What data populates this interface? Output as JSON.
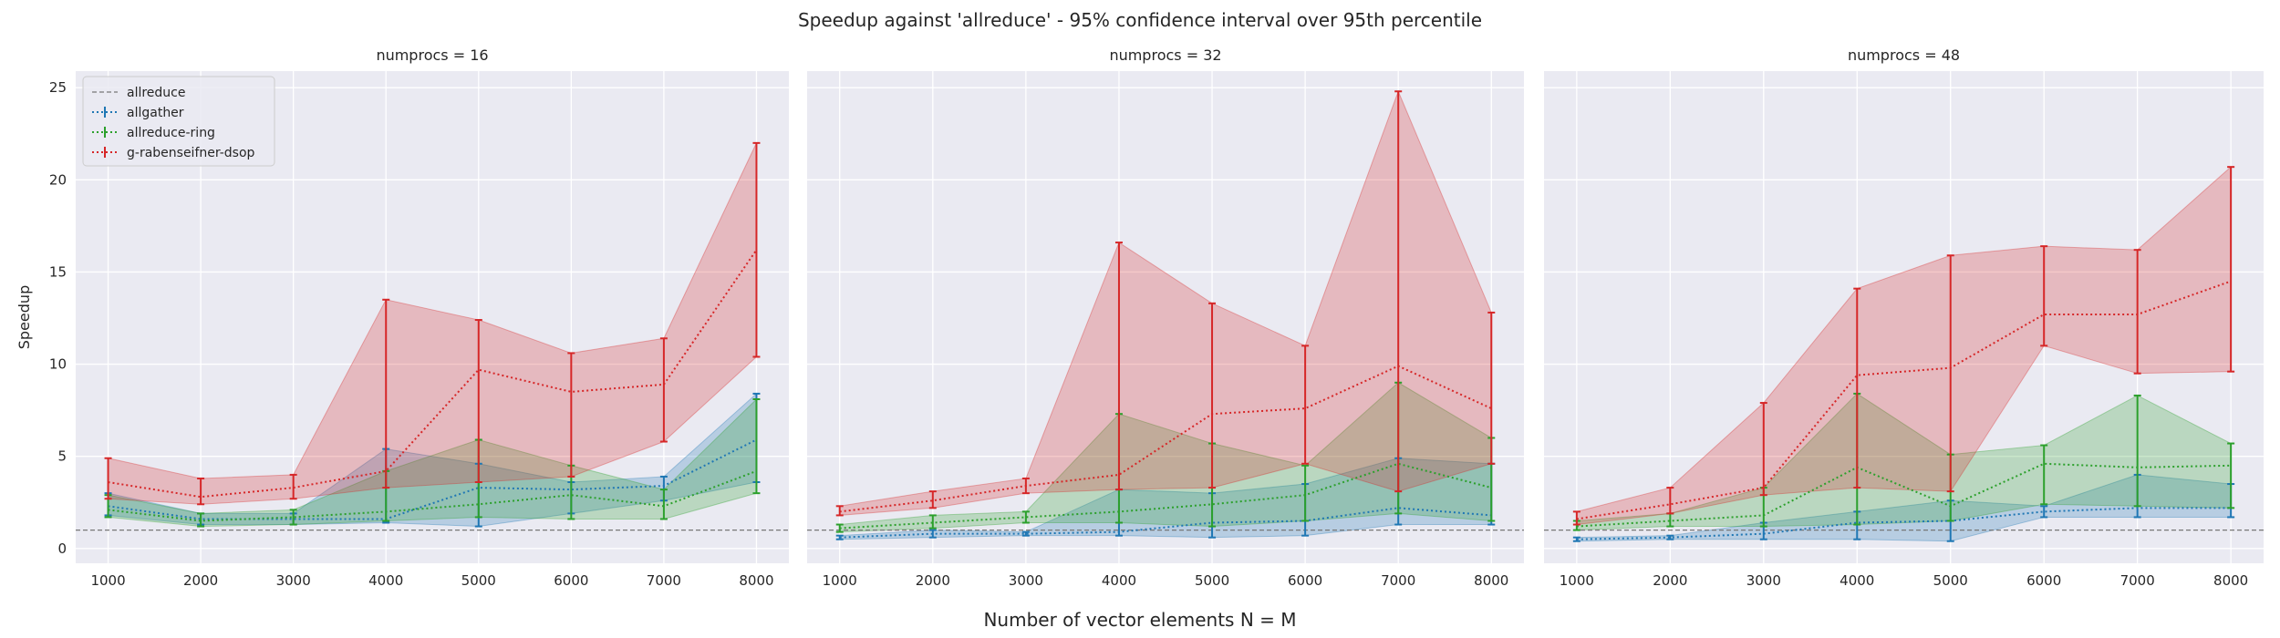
{
  "suptitle": "Speedup against 'allreduce' - 95% confidence interval over 95th percentile",
  "xlabel": "Number of vector elements N = M",
  "chart_data": [
    {
      "type": "line",
      "title": "numprocs = 16",
      "ylabel": "Speedup",
      "xlabel": "",
      "x": [
        1000,
        2000,
        3000,
        4000,
        5000,
        6000,
        7000,
        8000
      ],
      "xlim": [
        650,
        8350
      ],
      "ylim": [
        -0.8,
        25.9
      ],
      "yticks": [
        0,
        5,
        10,
        15,
        20,
        25
      ],
      "grid": true,
      "legend": "top-left",
      "baseline": {
        "name": "allreduce",
        "value": 1,
        "color": "#777777"
      },
      "series": [
        {
          "name": "allgather",
          "color": "#1f77b4",
          "values": [
            2.3,
            1.6,
            1.6,
            1.6,
            3.3,
            3.2,
            3.4,
            5.9
          ],
          "lower": [
            1.8,
            1.3,
            1.3,
            1.4,
            1.2,
            1.9,
            2.6,
            3.6
          ],
          "upper": [
            3.0,
            1.9,
            1.9,
            5.4,
            4.6,
            3.6,
            3.9,
            8.4
          ]
        },
        {
          "name": "allreduce-ring",
          "color": "#2ca02c",
          "values": [
            2.1,
            1.5,
            1.7,
            2.0,
            2.4,
            2.9,
            2.3,
            4.2
          ],
          "lower": [
            1.7,
            1.2,
            1.3,
            1.5,
            1.7,
            1.6,
            1.6,
            3.0
          ],
          "upper": [
            2.9,
            1.9,
            2.1,
            4.2,
            5.9,
            4.5,
            3.2,
            8.1
          ]
        },
        {
          "name": "g-rabenseifner-dsop",
          "color": "#d62728",
          "values": [
            3.6,
            2.8,
            3.3,
            4.2,
            9.7,
            8.5,
            8.9,
            16.2
          ],
          "lower": [
            2.7,
            2.4,
            2.7,
            3.3,
            3.6,
            3.9,
            5.8,
            10.4
          ],
          "upper": [
            4.9,
            3.8,
            4.0,
            13.5,
            12.4,
            10.6,
            11.4,
            22.0
          ]
        }
      ]
    },
    {
      "type": "line",
      "title": "numprocs = 32",
      "x": [
        1000,
        2000,
        3000,
        4000,
        5000,
        6000,
        7000,
        8000
      ],
      "xlim": [
        650,
        8350
      ],
      "ylim": [
        -0.8,
        25.9
      ],
      "grid": true,
      "baseline": {
        "name": "allreduce",
        "value": 1,
        "color": "#777777"
      },
      "series": [
        {
          "name": "allgather",
          "color": "#1f77b4",
          "values": [
            0.6,
            0.8,
            0.8,
            0.9,
            1.4,
            1.5,
            2.2,
            1.8
          ],
          "lower": [
            0.5,
            0.6,
            0.7,
            0.7,
            0.6,
            0.7,
            1.3,
            1.3
          ],
          "upper": [
            0.7,
            1.0,
            0.9,
            3.2,
            3.0,
            3.5,
            4.9,
            4.6
          ]
        },
        {
          "name": "allreduce-ring",
          "color": "#2ca02c",
          "values": [
            1.1,
            1.4,
            1.7,
            2.0,
            2.4,
            2.9,
            4.6,
            3.3
          ],
          "lower": [
            0.9,
            1.1,
            1.4,
            1.4,
            1.2,
            1.5,
            1.9,
            1.5
          ],
          "upper": [
            1.3,
            1.8,
            2.0,
            7.3,
            5.7,
            4.5,
            9.0,
            6.0
          ]
        },
        {
          "name": "g-rabenseifner-dsop",
          "color": "#d62728",
          "values": [
            2.0,
            2.6,
            3.4,
            4.0,
            7.3,
            7.6,
            9.9,
            7.6
          ],
          "lower": [
            1.8,
            2.2,
            3.0,
            3.2,
            3.3,
            4.6,
            3.1,
            4.6
          ],
          "upper": [
            2.3,
            3.1,
            3.8,
            16.6,
            13.3,
            11.0,
            24.8,
            12.8
          ]
        }
      ]
    },
    {
      "type": "line",
      "title": "numprocs = 48",
      "x": [
        1000,
        2000,
        3000,
        4000,
        5000,
        6000,
        7000,
        8000
      ],
      "xlim": [
        650,
        8350
      ],
      "ylim": [
        -0.8,
        25.9
      ],
      "grid": true,
      "baseline": {
        "name": "allreduce",
        "value": 1,
        "color": "#777777"
      },
      "series": [
        {
          "name": "allgather",
          "color": "#1f77b4",
          "values": [
            0.5,
            0.6,
            0.8,
            1.4,
            1.5,
            2.0,
            2.2,
            2.2
          ],
          "lower": [
            0.4,
            0.5,
            0.5,
            0.5,
            0.4,
            1.7,
            1.7,
            1.7
          ],
          "upper": [
            0.6,
            0.7,
            1.4,
            2.0,
            2.6,
            2.3,
            4.0,
            3.5
          ]
        },
        {
          "name": "allreduce-ring",
          "color": "#2ca02c",
          "values": [
            1.2,
            1.5,
            1.8,
            4.4,
            2.3,
            4.6,
            4.4,
            4.5
          ],
          "lower": [
            1.0,
            1.2,
            1.2,
            1.3,
            1.5,
            2.4,
            2.3,
            2.2
          ],
          "upper": [
            1.5,
            1.9,
            3.3,
            8.4,
            5.1,
            5.6,
            8.3,
            5.7
          ]
        },
        {
          "name": "g-rabenseifner-dsop",
          "color": "#d62728",
          "values": [
            1.6,
            2.4,
            3.3,
            9.4,
            9.8,
            12.7,
            12.7,
            14.5
          ],
          "lower": [
            1.3,
            1.9,
            2.9,
            3.3,
            3.1,
            11.0,
            9.5,
            9.6
          ],
          "upper": [
            2.0,
            3.3,
            7.9,
            14.1,
            15.9,
            16.4,
            16.2,
            20.7
          ]
        }
      ]
    }
  ]
}
